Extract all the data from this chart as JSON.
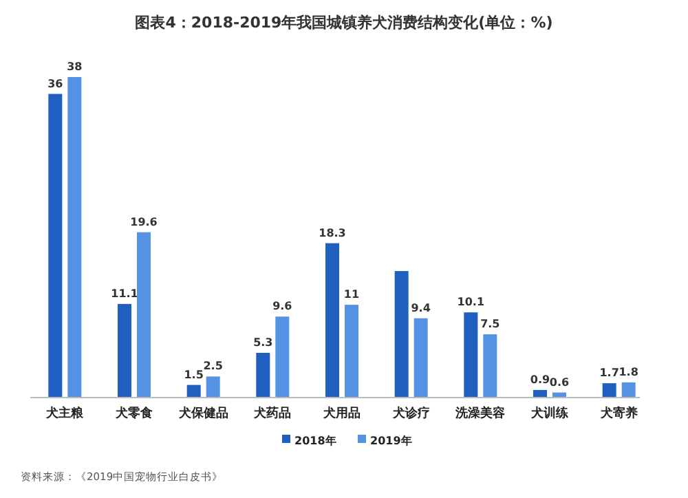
{
  "chart_data": {
    "type": "bar",
    "title": "图表4：2018-2019年我国城镇养犬消费结构变化(单位：%)",
    "categories": [
      "犬主粮",
      "犬零食",
      "犬保健品",
      "犬药品",
      "犬用品",
      "犬诊疗",
      "洗澡美容",
      "犬训练",
      "犬寄养"
    ],
    "series": [
      {
        "name": "2018年",
        "color": "#1f5fbf",
        "values": [
          36,
          11.1,
          1.5,
          5.3,
          18.3,
          15,
          10.1,
          0.9,
          1.7
        ],
        "value_labels": [
          "36",
          "11.1",
          "1.5",
          "5.3",
          "18.3",
          null,
          "10.1",
          "0.9",
          "1.7"
        ]
      },
      {
        "name": "2019年",
        "color": "#5592e3",
        "values": [
          38,
          19.6,
          2.5,
          9.6,
          11,
          9.4,
          7.5,
          0.6,
          1.8
        ],
        "value_labels": [
          "38",
          "19.6",
          "2.5",
          "9.6",
          "11",
          "9.4",
          "7.5",
          "0.6",
          "1.8"
        ]
      }
    ],
    "legend": "bottom",
    "annotations": [
      "资料来源：《2019中国宠物行业白皮书》"
    ]
  }
}
